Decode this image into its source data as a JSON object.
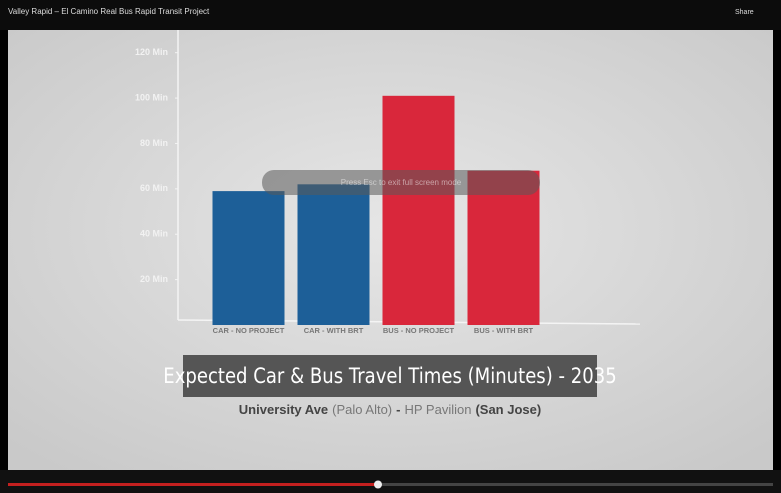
{
  "player": {
    "video_title": "Valley Rapid – El Camino Real Bus Rapid Transit Project",
    "share": "Share",
    "overlay": "Press Esc to exit full screen mode"
  },
  "chart_data": {
    "type": "bar",
    "title": "Expected Car & Bus Travel Times (Minutes) - 2035",
    "subtitle_parts": [
      "University Ave",
      "(Palo Alto)",
      "-",
      "HP Pavilion",
      "(San Jose)"
    ],
    "categories": [
      "CAR - NO PROJECT",
      "CAR - WITH BRT",
      "BUS - NO PROJECT",
      "BUS - WITH BRT"
    ],
    "values": [
      59,
      62,
      101,
      68
    ],
    "colors": [
      "#1d5f98",
      "#1d5f98",
      "#d9273b",
      "#d9273b"
    ],
    "ylim": [
      0,
      130
    ],
    "yticks": [
      {
        "value": 20,
        "label": "20 Min"
      },
      {
        "value": 40,
        "label": "40 Min"
      },
      {
        "value": 60,
        "label": "60 Min"
      },
      {
        "value": 80,
        "label": "80 Min"
      },
      {
        "value": 100,
        "label": "100 Min"
      },
      {
        "value": 120,
        "label": "120 Min"
      }
    ]
  }
}
